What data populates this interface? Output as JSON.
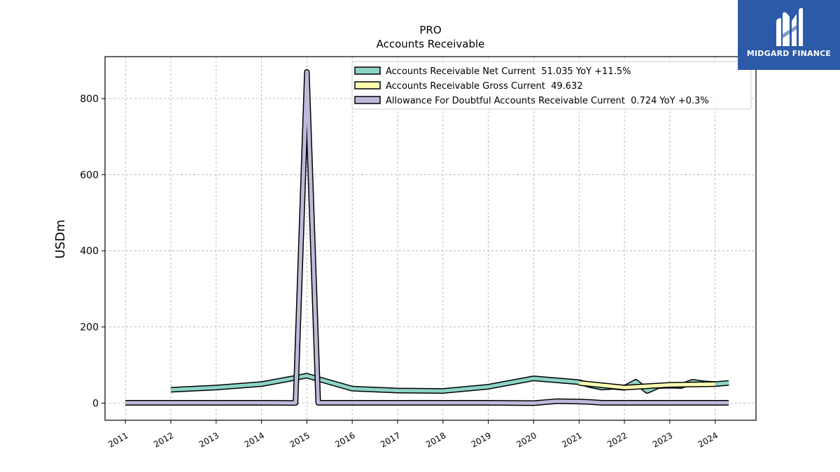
{
  "logo": {
    "text": "MIDGARD FINANCE",
    "icon": "midgard-m-icon",
    "background": "#2c5aa8"
  },
  "chart_data": {
    "type": "line",
    "title": "PRO",
    "subtitle": "Accounts Receivable",
    "ylabel": "USDm",
    "xlabel": "",
    "ylim": [
      -45,
      910
    ],
    "xlim": [
      2010.55,
      2024.9
    ],
    "yticks": [
      0,
      200,
      400,
      600,
      800
    ],
    "xticks": [
      "2011",
      "2012",
      "2013",
      "2014",
      "2015",
      "2016",
      "2017",
      "2018",
      "2019",
      "2020",
      "2021",
      "2022",
      "2023",
      "2024"
    ],
    "grid": true,
    "legend_position": "top-right",
    "series": [
      {
        "name": "Accounts Receivable Net Current",
        "legend": "Accounts Receivable Net Current  51.035 YoY +11.5%",
        "color": "#8dd3c7",
        "x": [
          2012,
          2013,
          2014,
          2015,
          2016,
          2017,
          2018,
          2019,
          2020,
          2021,
          2021.25,
          2021.5,
          2021.75,
          2022,
          2022.25,
          2022.5,
          2022.75,
          2023,
          2023.25,
          2023.5,
          2023.75,
          2024,
          2024.3
        ],
        "y": [
          35,
          41,
          50,
          72,
          38,
          33,
          32,
          43,
          65,
          55,
          47,
          41,
          43,
          40,
          56,
          32,
          45,
          46,
          45,
          56,
          52,
          50,
          53
        ]
      },
      {
        "name": "Accounts Receivable Gross Current",
        "legend": "Accounts Receivable Gross Current  49.632",
        "color": "#ffffb3",
        "x": [
          2021,
          2022,
          2023,
          2024
        ],
        "y": [
          53,
          41,
          48,
          50
        ]
      },
      {
        "name": "Allowance For Doubtful Accounts Receivable Current",
        "legend": "Allowance For Doubtful Accounts Receivable Current  0.724 YoY +0.3%",
        "color": "#bebada",
        "x": [
          2011,
          2012,
          2013,
          2014,
          2014.75,
          2015,
          2015.25,
          2016,
          2017,
          2018,
          2019,
          2020,
          2020.5,
          2021,
          2021.25,
          2021.5,
          2022,
          2022.5,
          2023,
          2024,
          2024.3
        ],
        "y": [
          1,
          1,
          1,
          1,
          0.5,
          870,
          1,
          1,
          1,
          1,
          1,
          0,
          5,
          4,
          3,
          1,
          1,
          1,
          1,
          1,
          1
        ]
      }
    ]
  }
}
